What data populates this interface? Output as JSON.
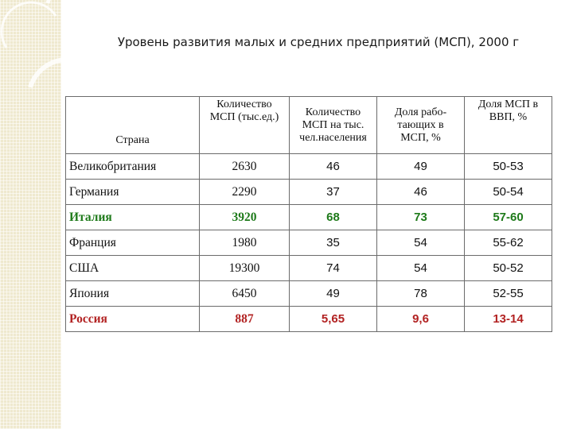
{
  "title": "Уровень развития малых и средних предприятий (МСП), 2000 г",
  "colors": {
    "highlight_green": "#1e7a1a",
    "highlight_red": "#b22222",
    "border": "#6b6b6b"
  },
  "table": {
    "headers": [
      "Страна",
      "Количество\nМСП (тыс.ед.)",
      "Количество\nМСП на тыс.\nчел.населения",
      "Доля рабо-\nтающих в\nМСП, %",
      "Доля МСП в\nВВП, %"
    ],
    "rows": [
      {
        "country": "Великобритания",
        "count": "2630",
        "per_thousand": "46",
        "employment_share": "49",
        "gdp_share": "50-53",
        "highlight": "none"
      },
      {
        "country": "Германия",
        "count": "2290",
        "per_thousand": "37",
        "employment_share": "46",
        "gdp_share": "50-54",
        "highlight": "none"
      },
      {
        "country": "Италия",
        "count": "3920",
        "per_thousand": "68",
        "employment_share": "73",
        "gdp_share": "57-60",
        "highlight": "green"
      },
      {
        "country": "Франция",
        "count": "1980",
        "per_thousand": "35",
        "employment_share": "54",
        "gdp_share": "55-62",
        "highlight": "none"
      },
      {
        "country": "США",
        "count": "19300",
        "per_thousand": "74",
        "employment_share": "54",
        "gdp_share": "50-52",
        "highlight": "none"
      },
      {
        "country": "Япония",
        "count": "6450",
        "per_thousand": "49",
        "employment_share": "78",
        "gdp_share": "52-55",
        "highlight": "none"
      },
      {
        "country": "Россия",
        "count": "887",
        "per_thousand": "5,65",
        "employment_share": "9,6",
        "gdp_share": "13-14",
        "highlight": "red"
      }
    ]
  }
}
